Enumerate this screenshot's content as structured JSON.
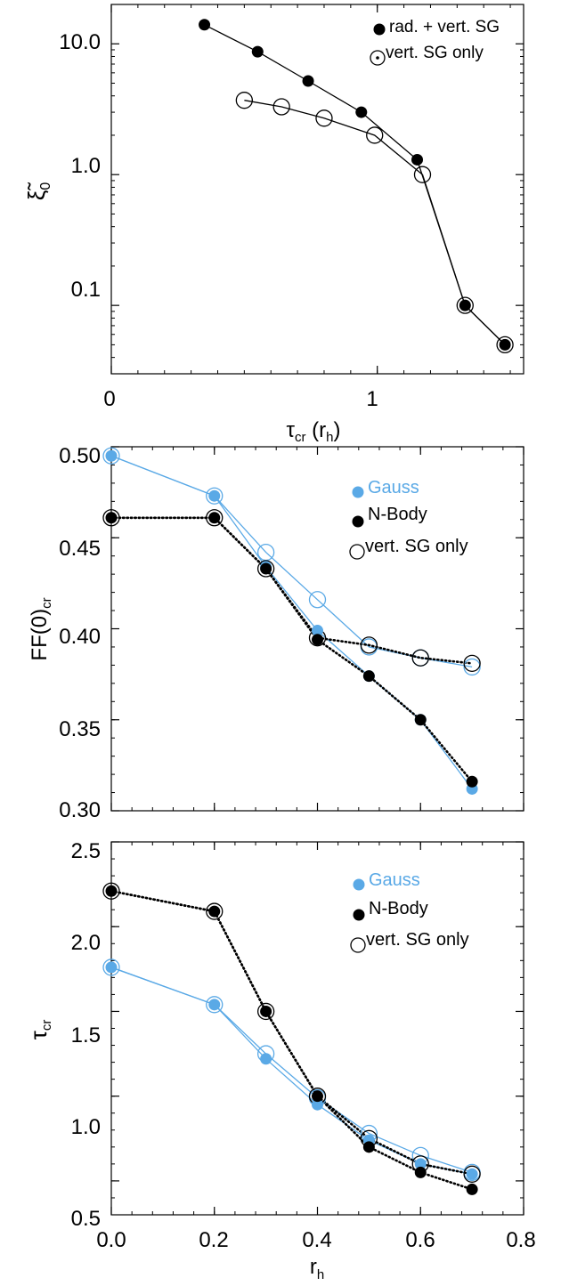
{
  "colors": {
    "blue": "#5aa9e6",
    "black": "#000000",
    "frame": "#000000"
  },
  "chart_data": [
    {
      "id": "top",
      "type": "line",
      "xlabel_main": "τ",
      "xlabel_sub": "cr",
      "xlabel_tail": " (r",
      "xlabel_tail_sub": "h",
      "xlabel_end": ")",
      "ylabel": "ξ̃",
      "ylabel_sub": "0",
      "xscale": "linear",
      "yscale": "log",
      "xlim": [
        0,
        1.55
      ],
      "ylim": [
        0.03,
        20
      ],
      "xticks": [
        0,
        1
      ],
      "xticklabels": [
        "0",
        "1"
      ],
      "yticks": [
        0.1,
        1.0,
        10.0
      ],
      "yticklabels": [
        "0.1",
        "1.0",
        "10.0"
      ],
      "legend_position": "top-right",
      "series": [
        {
          "name": "rad. + vert. SG",
          "marker": "filled",
          "color": "black",
          "line": "solid",
          "x": [
            0.35,
            0.55,
            0.74,
            0.94,
            1.15,
            1.33,
            1.48
          ],
          "y": [
            14.0,
            8.7,
            5.2,
            3.0,
            1.3,
            0.1,
            0.05
          ]
        },
        {
          "name": "vert. SG only",
          "marker": "open",
          "color": "black",
          "line": "solid",
          "x": [
            0.5,
            0.64,
            0.8,
            0.99,
            1.17,
            1.33,
            1.48
          ],
          "y": [
            3.7,
            3.3,
            2.7,
            2.0,
            1.0,
            0.1,
            0.05
          ]
        }
      ]
    },
    {
      "id": "middle",
      "type": "line",
      "ylabel": "FF(0)",
      "ylabel_sub": "cr",
      "xlim": [
        0,
        0.8
      ],
      "ylim": [
        0.3,
        0.5
      ],
      "yticks": [
        0.3,
        0.35,
        0.4,
        0.45,
        0.5
      ],
      "yticklabels": [
        "0.30",
        "0.35",
        "0.40",
        "0.45",
        "0.50"
      ],
      "legend_position": "top-right",
      "legend": [
        {
          "label": "Gauss",
          "marker": "filled",
          "color": "blue"
        },
        {
          "label": "N-Body",
          "marker": "filled",
          "color": "black"
        },
        {
          "label": "vert. SG only",
          "marker": "open",
          "color": "black"
        }
      ],
      "x": [
        0.0,
        0.2,
        0.3,
        0.4,
        0.5,
        0.6,
        0.7
      ],
      "series": [
        {
          "name": "Gauss",
          "marker": "filled",
          "color": "blue",
          "line": "solid",
          "y": [
            0.495,
            0.473,
            0.434,
            0.399,
            0.374,
            0.35,
            0.312
          ]
        },
        {
          "name": "Gauss, vert. SG only",
          "marker": "open",
          "color": "blue",
          "line": "solid",
          "y": [
            0.495,
            0.473,
            0.442,
            0.416,
            0.39,
            0.384,
            0.379
          ]
        },
        {
          "name": "N-Body",
          "marker": "filled",
          "color": "black",
          "line": "dotted",
          "y": [
            0.461,
            0.461,
            0.433,
            0.394,
            0.374,
            0.35,
            0.316
          ]
        },
        {
          "name": "N-Body, vert. SG only",
          "marker": "open",
          "color": "black",
          "line": "dotted",
          "y": [
            0.461,
            0.461,
            0.433,
            0.395,
            0.391,
            0.384,
            0.381
          ]
        }
      ]
    },
    {
      "id": "bottom",
      "type": "line",
      "ylabel": "τ",
      "ylabel_sub": "cr",
      "xlabel_main": "r",
      "xlabel_sub": "h",
      "xlim": [
        0,
        0.8
      ],
      "ylim": [
        0.3,
        2.5
      ],
      "xticks": [
        0.0,
        0.2,
        0.4,
        0.6,
        0.8
      ],
      "xticklabels": [
        "0.0",
        "0.2",
        "0.4",
        "0.6",
        "0.8"
      ],
      "yticks": [
        0.5,
        1.0,
        1.5,
        2.0,
        2.5
      ],
      "yticklabels": [
        "0.5",
        "1.0",
        "1.5",
        "2.0",
        "2.5"
      ],
      "legend_position": "top-right",
      "legend": [
        {
          "label": "Gauss",
          "marker": "filled",
          "color": "blue"
        },
        {
          "label": "N-Body",
          "marker": "filled",
          "color": "black"
        },
        {
          "label": "vert. SG only",
          "marker": "open",
          "color": "black"
        }
      ],
      "x": [
        0.0,
        0.2,
        0.3,
        0.4,
        0.5,
        0.6,
        0.7
      ],
      "series": [
        {
          "name": "Gauss",
          "marker": "filled",
          "color": "blue",
          "line": "solid",
          "y": [
            1.76,
            1.54,
            1.22,
            0.95,
            0.74,
            0.6,
            0.54
          ]
        },
        {
          "name": "Gauss, vert. SG only",
          "marker": "open",
          "color": "blue",
          "line": "solid",
          "y": [
            1.76,
            1.54,
            1.25,
            0.99,
            0.78,
            0.65,
            0.55
          ]
        },
        {
          "name": "N-Body",
          "marker": "filled",
          "color": "black",
          "line": "dotted",
          "y": [
            2.21,
            2.09,
            1.5,
            1.0,
            0.7,
            0.55,
            0.45
          ]
        },
        {
          "name": "N-Body, vert. SG only",
          "marker": "open",
          "color": "black",
          "line": "dotted",
          "y": [
            2.21,
            2.09,
            1.5,
            1.0,
            0.75,
            0.6,
            0.54
          ]
        }
      ]
    }
  ]
}
